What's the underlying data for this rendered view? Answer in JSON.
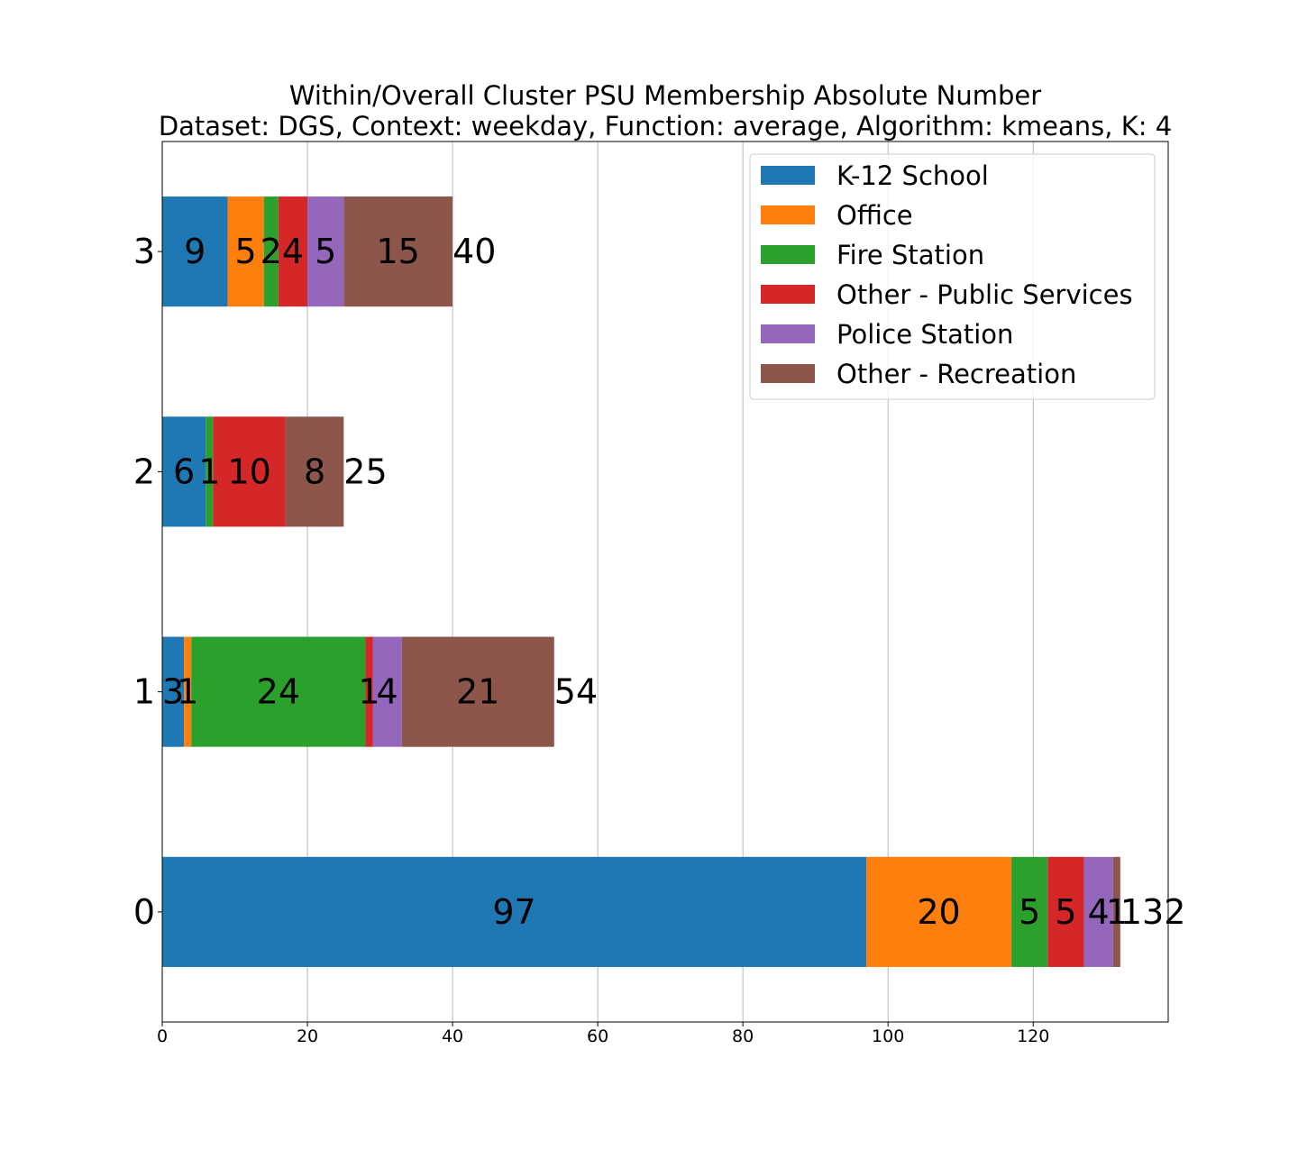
{
  "chart_data": {
    "type": "bar",
    "orientation": "horizontal",
    "stacked": true,
    "title": "Within/Overall Cluster PSU Membership Absolute Number",
    "subtitle": "Dataset: DGS, Context: weekday, Function: average, Algorithm: kmeans, K: 4",
    "xlabel": "",
    "ylabel": "",
    "categories": [
      "0",
      "1",
      "2",
      "3"
    ],
    "xlim": [
      0,
      138.6
    ],
    "xticks": [
      0,
      20,
      40,
      60,
      80,
      100,
      120
    ],
    "grid": "x",
    "legend_position": "top-right",
    "series": [
      {
        "name": "K-12 School",
        "color": "#1f77b4",
        "values": [
          97,
          3,
          6,
          9
        ]
      },
      {
        "name": "Office",
        "color": "#ff7f0e",
        "values": [
          20,
          1,
          0,
          5
        ]
      },
      {
        "name": "Fire Station",
        "color": "#2ca02c",
        "values": [
          5,
          24,
          1,
          2
        ]
      },
      {
        "name": "Other - Public Services",
        "color": "#d62728",
        "values": [
          5,
          1,
          10,
          4
        ]
      },
      {
        "name": "Police Station",
        "color": "#9467bd",
        "values": [
          4,
          4,
          0,
          5
        ]
      },
      {
        "name": "Other - Recreation",
        "color": "#8c564b",
        "values": [
          1,
          21,
          8,
          15
        ]
      }
    ],
    "totals": [
      132,
      54,
      25,
      40
    ]
  }
}
